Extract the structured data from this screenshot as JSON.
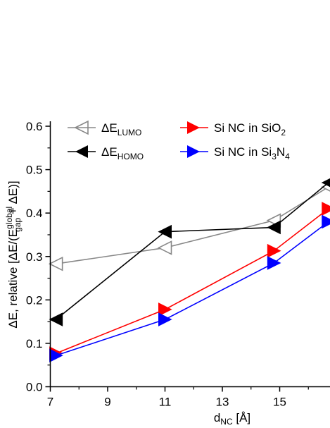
{
  "chart_data": {
    "type": "line",
    "title": "",
    "xlabel": {
      "base": "d",
      "sub": "NC",
      "rest": " [Å]"
    },
    "ylabel": {
      "p1": "ΔE, relative [ΔE/(E",
      "sup": "global",
      "sub": "gap",
      "p2": " + ΔE)]"
    },
    "xlim": [
      7,
      16.7
    ],
    "ylim": [
      0.0,
      0.6
    ],
    "xticks": [
      7,
      9,
      11,
      13,
      15
    ],
    "xtick_labels": [
      "7",
      "9",
      "11",
      "13",
      "15"
    ],
    "yticks": [
      0.0,
      0.1,
      0.2,
      0.3,
      0.4,
      0.5,
      0.6
    ],
    "ytick_labels": [
      "0.0",
      "0.1",
      "0.2",
      "0.3",
      "0.4",
      "0.5",
      "0.6"
    ],
    "grid": false,
    "legend_position": "top",
    "series": [
      {
        "name": "ΔE_LUMO",
        "legend_label": {
          "base": "ΔE",
          "sub": "LUMO",
          "after_sub": "",
          "sub2": ""
        },
        "color": "#888888",
        "marker": "triangle-left-open",
        "x": [
          7.2,
          11.0,
          14.8,
          16.7
        ],
        "y": [
          0.283,
          0.32,
          0.383,
          0.46
        ]
      },
      {
        "name": "ΔE_HOMO",
        "legend_label": {
          "base": "ΔE",
          "sub": "HOMO",
          "after_sub": "",
          "sub2": ""
        },
        "color": "#000000",
        "marker": "triangle-left-filled",
        "x": [
          7.2,
          11.0,
          14.8,
          16.7
        ],
        "y": [
          0.155,
          0.357,
          0.367,
          0.47
        ]
      },
      {
        "name": "Si NC in SiO2",
        "legend_label": {
          "base": "Si NC in SiO",
          "sub": "2",
          "after_sub": "",
          "sub2": ""
        },
        "color": "#ff0000",
        "marker": "triangle-right-filled",
        "x": [
          7.2,
          11.0,
          14.8,
          16.7
        ],
        "y": [
          0.077,
          0.178,
          0.313,
          0.41
        ]
      },
      {
        "name": "Si NC in Si3N4",
        "legend_label": {
          "base": "Si NC in Si",
          "sub": "3",
          "after_sub": "N",
          "sub2": "4"
        },
        "color": "#0000ff",
        "marker": "triangle-right-filled",
        "x": [
          7.2,
          11.0,
          14.8,
          16.7
        ],
        "y": [
          0.072,
          0.155,
          0.285,
          0.38
        ]
      }
    ]
  }
}
